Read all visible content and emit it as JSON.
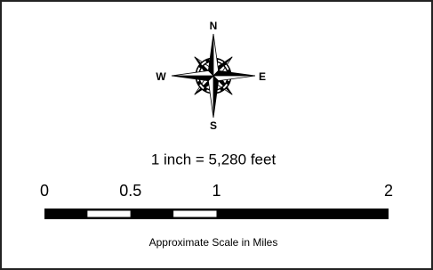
{
  "compass": {
    "north": "N",
    "west": "W",
    "east": "E",
    "south": "S"
  },
  "scale": {
    "statement": "1 inch = 5,280 feet",
    "ticks": [
      0,
      0.5,
      1,
      2
    ],
    "caption": "Approximate Scale in Miles"
  }
}
